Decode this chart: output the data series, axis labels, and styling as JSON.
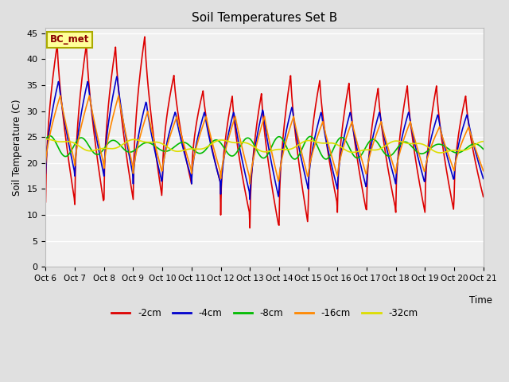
{
  "title": "Soil Temperatures Set B",
  "xlabel": "Time",
  "ylabel": "Soil Temperature (C)",
  "annotation": "BC_met",
  "x_tick_labels": [
    "Oct 6",
    "Oct 7",
    "Oct 8",
    "Oct 9",
    "Oct 10",
    "Oct 11",
    "Oct 12",
    "Oct 13",
    "Oct 14",
    "Oct 15",
    "Oct 16",
    "Oct 17",
    "Oct 18",
    "Oct 19",
    "Oct 20",
    "Oct 21"
  ],
  "ylim": [
    0,
    46
  ],
  "yticks": [
    0,
    5,
    10,
    15,
    20,
    25,
    30,
    35,
    40,
    45
  ],
  "colors": [
    "#DD0000",
    "#0000CC",
    "#00BB00",
    "#FF8800",
    "#DDDD00"
  ],
  "legend_labels": [
    "-2cm",
    "-4cm",
    "-8cm",
    "-16cm",
    "-32cm"
  ],
  "bg_color": "#E0E0E0",
  "plot_bg": "#F0F0F0",
  "lw": 1.2
}
